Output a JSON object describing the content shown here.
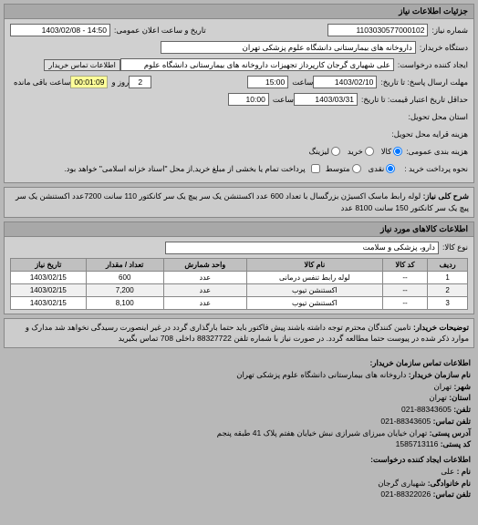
{
  "panel1": {
    "title": "جزئیات اطلاعات نیاز",
    "reqNoLabel": "شماره نیاز:",
    "reqNo": "1103030577000102",
    "pubDateLabel": "تاریخ و ساعت اعلان عمومی:",
    "pubDate": "14:50 - 1403/02/08",
    "deviceNameLabel": "دستگاه خریدار:",
    "deviceName": "داروخانه های بیمارستانی دانشگاه علوم پزشکی تهران",
    "requesterLabel": "ایجاد کننده درخواست:",
    "requester": "علی شهیاری گرجان کارپرداز تجهیزات داروخانه های بیمارستانی دانشگاه علوم",
    "contactBtn": "اطلاعات تماس خریدار",
    "deadlineSendLabel": "مهلت ارسال پاسخ: تا تاریخ:",
    "deadlineSendDate": "1403/02/10",
    "timeLabel": "ساعت",
    "deadlineSendTime": "15:00",
    "remainLabel": "ساعت باقی مانده",
    "daysLabel": "روز و",
    "remainDays": "2",
    "remainTime": "00:01:09",
    "validityLabel": "حداقل تاریخ اعتبار قیمت: تا تاریخ:",
    "validityDate": "1403/03/31",
    "validityTime": "10:00",
    "locLabel": "استان محل تحویل:",
    "freightLabel": "هزینه قرایه محل تحویل:",
    "packLabel": "هزینه بندی عمومی:",
    "packOptions": [
      "کالا",
      "خرید",
      "لیزینگ"
    ],
    "payLabel": "نحوه پرداخت خرید :",
    "payOptions": [
      "نقدی",
      "متوسط"
    ],
    "payNote": "پرداخت تمام یا بخشی از مبلغ خرید,از محل \"اسناد خزانه اسلامی\" خواهد بود."
  },
  "desc1": {
    "titleLabel": "شرح کلی نیاز:",
    "text": "لوله رابط ماسک اکسیژن بزرگسال با تعداد 600 عدد اکستنشن یک سر پیچ یک سر کانکتور 110 سانت 7200عدد اکستنشن یک سر پیچ یک سر کانکتور 150 سانت 8100 عدد"
  },
  "panel2": {
    "title": "اطلاعات کالاهای مورد نیاز",
    "catLabel": "نوع کالا:",
    "cat": "دارو، پزشکی و سلامت"
  },
  "table": {
    "headers": [
      "ردیف",
      "کد کالا",
      "نام کالا",
      "واحد شمارش",
      "تعداد / مقدار",
      "تاریخ نیاز"
    ],
    "rows": [
      [
        "1",
        "--",
        "لوله رابط تنفس درمانی",
        "عدد",
        "600",
        "1403/02/15"
      ],
      [
        "2",
        "--",
        "اکستنشن تیوب",
        "عدد",
        "7,200",
        "1403/02/15"
      ],
      [
        "3",
        "--",
        "اکستنشن تیوب",
        "عدد",
        "8,100",
        "1403/02/15"
      ]
    ]
  },
  "desc2": {
    "titleLabel": "توضیحات خریدار:",
    "text": "تامین کنندگان محترم توجه داشته باشند پیش فاکتور باید حتما بارگذاری گردد در غیر اینصورت رسیدگی نخواهد شد مدارک و موارد ذکر شده در پیوست حتما مطالعه گردد. در صورت نیاز با شماره تلفن 88327722 داخلی 708 تماس بگیرید"
  },
  "contact": {
    "title": "اطلاعات تماس سازمان خریدار:",
    "orgLabel": "نام سازمان خریدار:",
    "org": "داروخانه های بیمارستانی دانشگاه علوم پزشکی تهران",
    "cityLabel": "شهر:",
    "city": "تهران",
    "provLabel": "استان:",
    "prov": "تهران",
    "tel1Label": "تلفن:",
    "tel1": "88343605-021",
    "tel2Label": "تلفن تماس:",
    "tel2": "88343605-021",
    "addrLabel": "آدرس پستی:",
    "addr": "تهران خیایان میرزای شیرازی نبش خیایان هفتم پلاک 41 طبقه پنجم",
    "postLabel": "کد پستی:",
    "post": "1585713116",
    "creatorTitle": "اطلاعات ایجاد کننده درخواست:",
    "fnameLabel": "نام :",
    "fname": "علی",
    "lnameLabel": "نام خانوادگی:",
    "lname": "شهیاری گرجان",
    "ctelLabel": "تلفن تماس:",
    "ctel": "88322026-021"
  }
}
